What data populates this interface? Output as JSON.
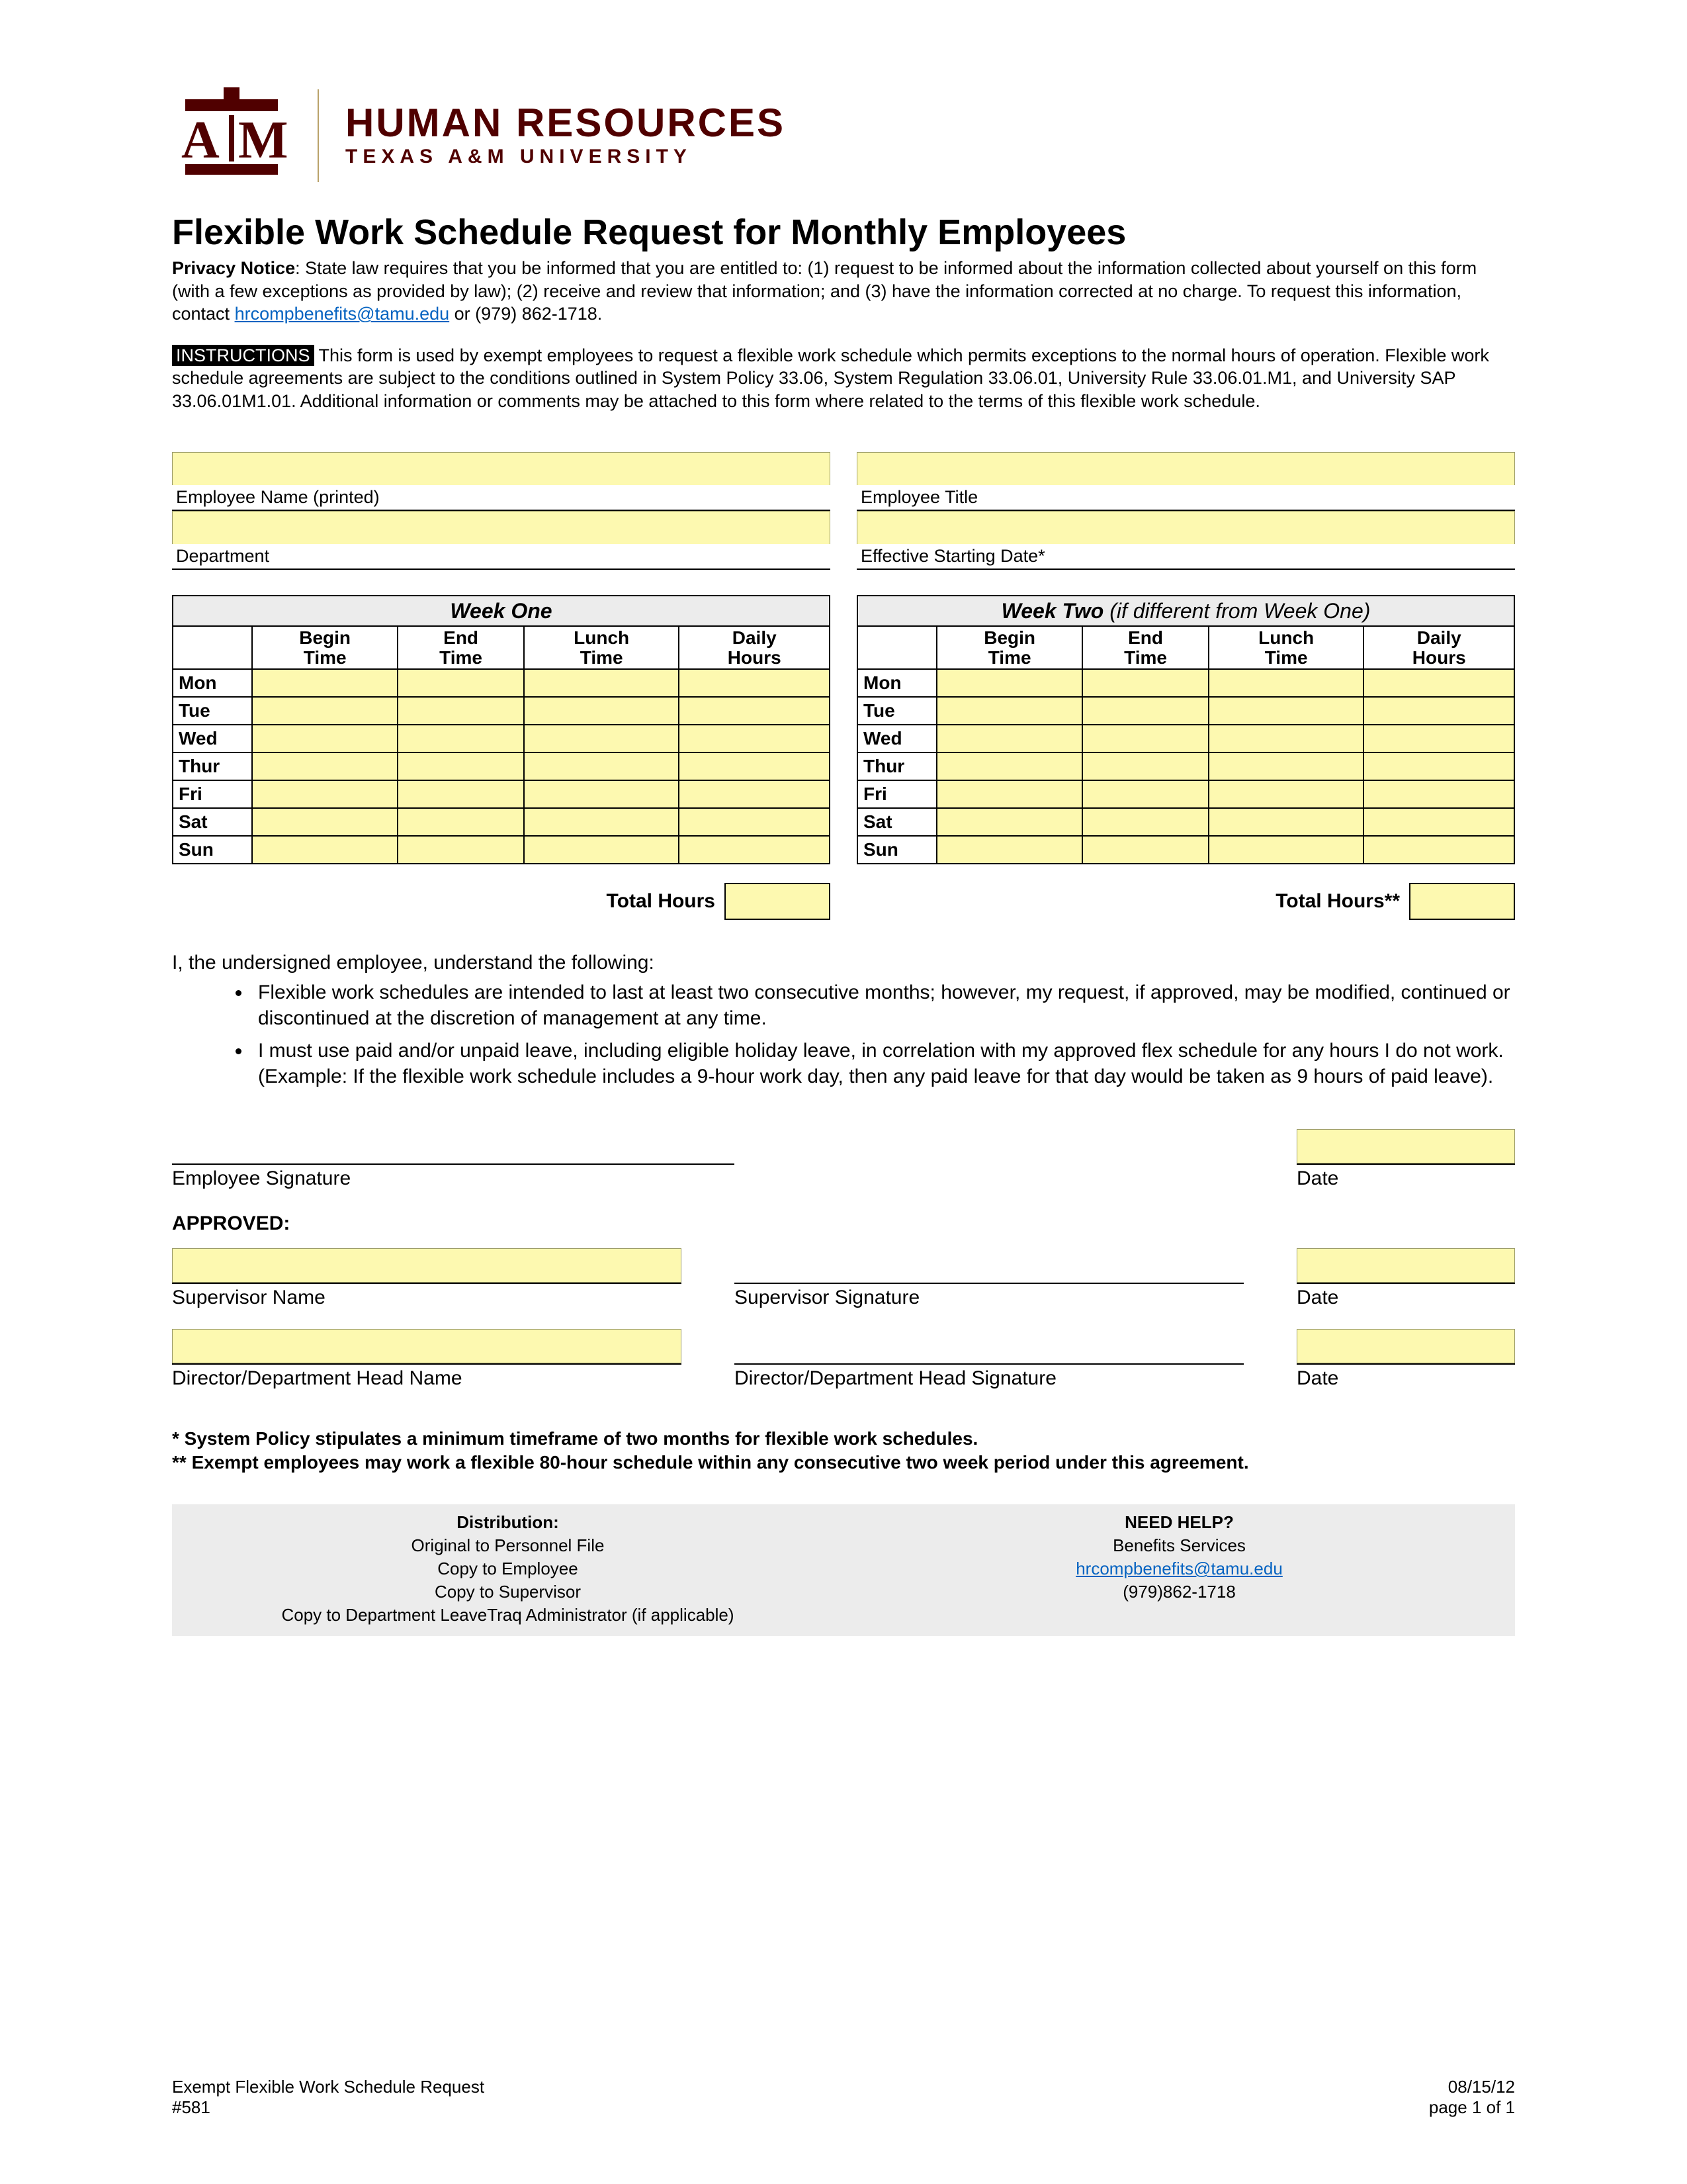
{
  "colors": {
    "maroon": "#500000",
    "field_fill": "#fdf9b0",
    "grey_box": "#ececec",
    "link": "#0563c1",
    "border": "#000000",
    "background": "#ffffff"
  },
  "logo": {
    "mark_text": "A|M",
    "top_letter": "T",
    "dept": "HUMAN RESOURCES",
    "univ": "TEXAS A&M UNIVERSITY"
  },
  "title": "Flexible Work Schedule Request for Monthly Employees",
  "privacy": {
    "label": "Privacy Notice",
    "text_before_email": ": State law requires that you be informed that you are entitled to: (1) request to be informed about the information collected about yourself on this form (with a few exceptions as provided by law); (2) receive and review that information; and (3) have the information corrected at no charge. To request this information, contact ",
    "email": "hrcompbenefits@tamu.edu",
    "text_after_email": "  or (979) 862-1718."
  },
  "instructions": {
    "label": "INSTRUCTIONS",
    "text": " This form is used by exempt employees to request a flexible work schedule which permits exceptions to the normal hours of operation.  Flexible work schedule agreements are subject to the conditions outlined in System Policy 33.06, System Regulation 33.06.01, University Rule 33.06.01.M1, and University SAP 33.06.01M1.01.  Additional information or comments may be attached to this form where related to the terms of this  flexible work schedule."
  },
  "info_fields": {
    "employee_name": "Employee Name (printed)",
    "employee_title": "Employee Title",
    "department": "Department",
    "effective_date": "Effective Starting Date*"
  },
  "weeks": {
    "columns": [
      "Begin\nTime",
      "End\nTime",
      "Lunch\nTime",
      "Daily\nHours"
    ],
    "days": [
      "Mon",
      "Tue",
      "Wed",
      "Thur",
      "Fri",
      "Sat",
      "Sun"
    ],
    "one": {
      "title": "Week One",
      "total_label": "Total Hours"
    },
    "two": {
      "title": "Week Two",
      "subtitle": " (if different from Week One)",
      "total_label": "Total Hours**"
    }
  },
  "ack": {
    "lead": "I, the undersigned employee, understand the following:",
    "bullets": [
      "Flexible work schedules are intended to last at least two consecutive months; however, my request, if approved, may be modified, continued or discontinued at the discretion of management at any time.",
      "I must use paid and/or unpaid leave, including eligible holiday leave, in correlation with my approved flex schedule for any hours I do not work. (Example: If the flexible work schedule includes a 9-hour work day, then any paid leave for that day would be taken as 9 hours of paid leave)."
    ]
  },
  "sig": {
    "employee_sig": "Employee Signature",
    "date": "Date",
    "approved": "APPROVED:",
    "supervisor_name": "Supervisor Name",
    "supervisor_sig": "Supervisor Signature",
    "director_name": "Director/Department Head Name",
    "director_sig": "Director/Department Head Signature"
  },
  "footnotes": {
    "one": "* System Policy stipulates a minimum timeframe of two months for flexible work schedules.",
    "two": "** Exempt employees may work a flexible 80-hour schedule within any consecutive two week period under this agreement."
  },
  "distribution": {
    "heading": "Distribution:",
    "lines": [
      "Original to Personnel File",
      "Copy to Employee",
      "Copy to Supervisor",
      "Copy to Department LeaveTraq Administrator (if applicable)"
    ]
  },
  "help": {
    "heading": "NEED HELP?",
    "service": "Benefits Services",
    "email": "hrcompbenefits@tamu.edu",
    "phone": "(979)862-1718"
  },
  "footer": {
    "left1": "Exempt Flexible Work Schedule Request",
    "left2": "#581",
    "right1": "08/15/12",
    "right2": "page 1 of 1"
  }
}
